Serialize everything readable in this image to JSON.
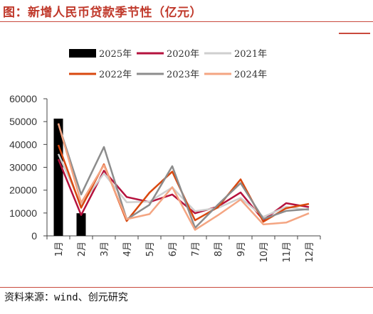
{
  "page": {
    "title": "图：新增人民币贷款季节性（亿元）",
    "source": "资料来源：wind、创元研究"
  },
  "chart_data": {
    "type": "line",
    "categories": [
      "1月",
      "2月",
      "3月",
      "4月",
      "5月",
      "6月",
      "7月",
      "8月",
      "9月",
      "10月",
      "11月",
      "12月"
    ],
    "ylim": [
      0,
      60000
    ],
    "yticks": [
      0,
      10000,
      20000,
      30000,
      40000,
      50000,
      60000
    ],
    "grid": false,
    "legend_position": "top",
    "bar_series": {
      "name": "2025年",
      "color": "#000000",
      "values": [
        51300,
        9900,
        null,
        null,
        null,
        null,
        null,
        null,
        null,
        null,
        null,
        null
      ]
    },
    "series": [
      {
        "name": "2020年",
        "color": "#b5123e",
        "values": [
          33500,
          9100,
          28500,
          17000,
          14800,
          18100,
          9900,
          12800,
          19000,
          6900,
          14300,
          12600
        ]
      },
      {
        "name": "2021年",
        "color": "#cfcfcf",
        "values": [
          35800,
          13600,
          27300,
          14700,
          15000,
          21200,
          10800,
          12200,
          16600,
          8300,
          12700,
          11300
        ]
      },
      {
        "name": "2022年",
        "color": "#d9480f",
        "values": [
          39800,
          12300,
          31300,
          6500,
          18900,
          28100,
          6800,
          12500,
          24700,
          6200,
          12100,
          14000
        ]
      },
      {
        "name": "2023年",
        "color": "#8c8c8c",
        "values": [
          49000,
          18100,
          38900,
          7200,
          13600,
          30500,
          3500,
          13600,
          23100,
          7400,
          10900,
          11700
        ]
      },
      {
        "name": "2024年",
        "color": "#f4a582",
        "values": [
          49200,
          14500,
          30900,
          7300,
          9500,
          21300,
          2600,
          9000,
          15900,
          5000,
          5800,
          9900
        ]
      }
    ]
  }
}
